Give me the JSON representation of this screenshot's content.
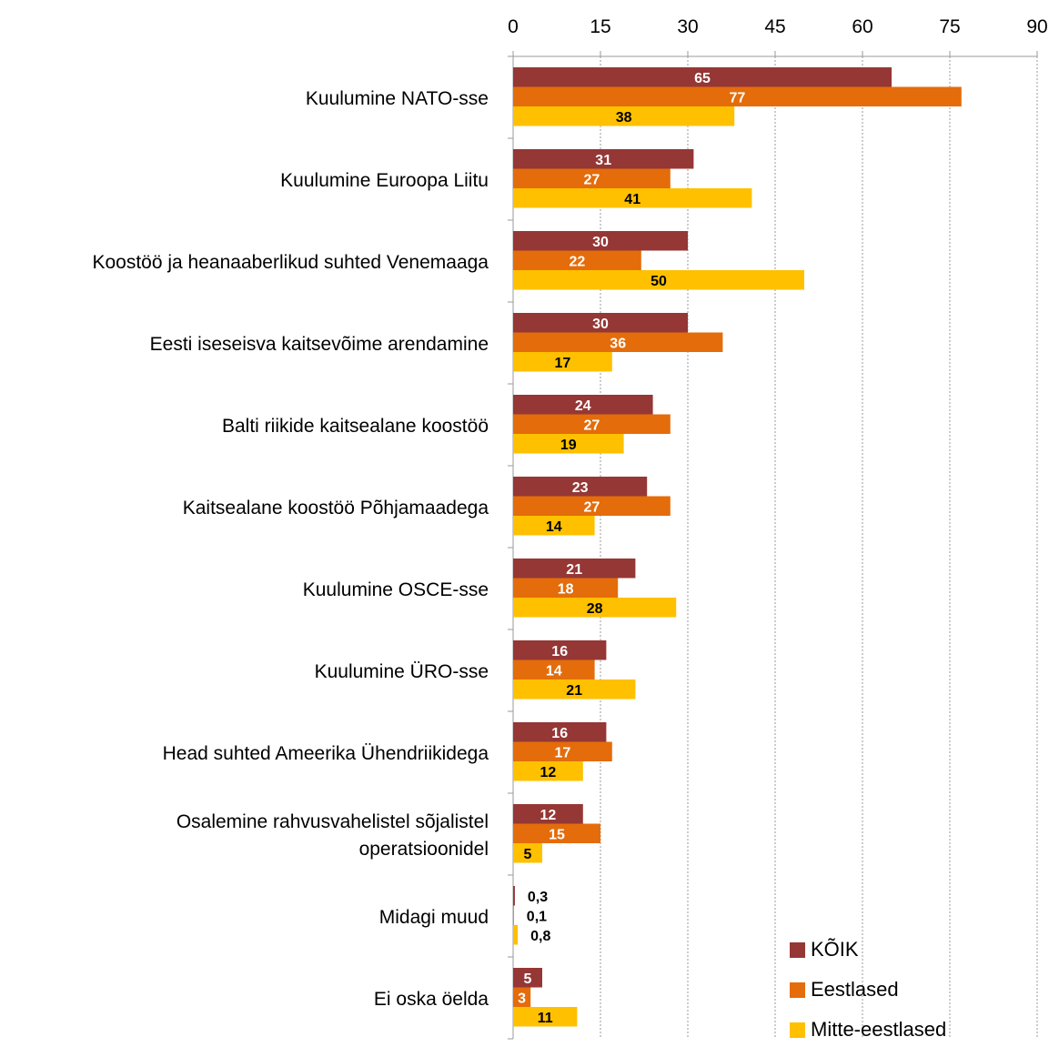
{
  "chart_data": {
    "type": "bar",
    "orientation": "horizontal",
    "title": "",
    "xlabel": "",
    "ylabel": "",
    "xlim": [
      0,
      90
    ],
    "xticks": [
      "0",
      "15",
      "30",
      "45",
      "60",
      "75",
      "90"
    ],
    "grid": "vertical dashed",
    "legend_position": "bottom-right",
    "categories": [
      "Kuulumine NATO-sse",
      "Kuulumine Euroopa Liitu",
      "Koostöö ja heanaaberlikud suhted Venemaaga",
      "Eesti iseseisva kaitsevõime arendamine",
      "Balti riikide kaitsealane koostöö",
      "Kaitsealane koostöö Põhjamaadega",
      "Kuulumine OSCE-sse",
      "Kuulumine ÜRO-sse",
      "Head suhted Ameerika Ühendriikidega",
      "Osalemine rahvusvahelistel sõjalistel operatsioonidel",
      "Midagi muud",
      "Ei oska öelda"
    ],
    "series": [
      {
        "name": "KÕIK",
        "color": "#953735",
        "label_color": "#ffffff",
        "values": [
          65,
          31,
          30,
          30,
          24,
          23,
          21,
          16,
          16,
          12,
          0.3,
          5
        ],
        "labels": [
          "65",
          "31",
          "30",
          "30",
          "24",
          "23",
          "21",
          "16",
          "16",
          "12",
          "0,3",
          "5"
        ]
      },
      {
        "name": "Eestlased",
        "color": "#E46C0A",
        "label_color": "#ffffff",
        "values": [
          77,
          27,
          22,
          36,
          27,
          27,
          18,
          14,
          17,
          15,
          0.1,
          3
        ],
        "labels": [
          "77",
          "27",
          "22",
          "36",
          "27",
          "27",
          "18",
          "14",
          "17",
          "15",
          "0,1",
          "3"
        ]
      },
      {
        "name": "Mitte-eestlased",
        "color": "#FFC000",
        "label_color": "#000000",
        "values": [
          38,
          41,
          50,
          17,
          19,
          14,
          28,
          21,
          12,
          5,
          0.8,
          11
        ],
        "labels": [
          "38",
          "41",
          "50",
          "17",
          "19",
          "14",
          "28",
          "21",
          "12",
          "5",
          "0,8",
          "11"
        ]
      }
    ]
  }
}
